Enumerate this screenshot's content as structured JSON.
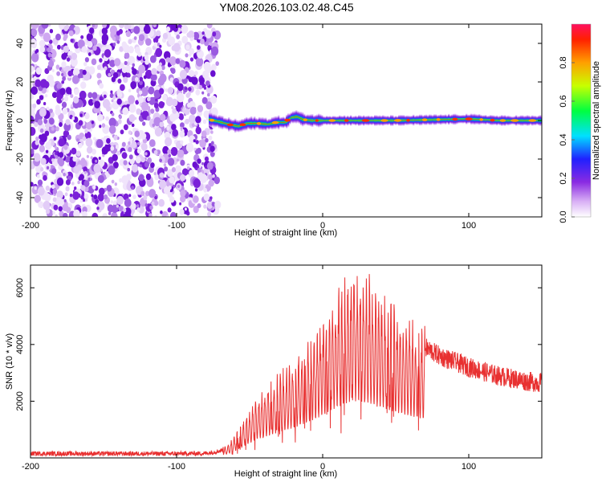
{
  "title": "YM08.2026.103.02.48.C45",
  "colors": {
    "trace": "#e83030",
    "noise_dot": "#8a3bd6",
    "axis": "#000000",
    "background": "#ffffff"
  },
  "chart_data": [
    {
      "type": "heatmap",
      "title": "YM08.2026.103.02.48.C45",
      "xlabel": "Height of straight line (km)",
      "ylabel": "Frequency (Hz)",
      "xlim": [
        -200,
        150
      ],
      "ylim": [
        -50,
        50
      ],
      "xticks": [
        -200,
        -100,
        0,
        100
      ],
      "yticks": [
        -40,
        -20,
        0,
        20,
        40
      ],
      "noise_region": {
        "x": [
          -200,
          -75
        ],
        "y": [
          -50,
          50
        ]
      },
      "signal_band": {
        "x": [
          -78,
          150
        ],
        "center_hz": [
          [
            -78,
            0.5
          ],
          [
            -72,
            -0.5
          ],
          [
            -65,
            -2
          ],
          [
            -58,
            -3
          ],
          [
            -52,
            -1.5
          ],
          [
            -45,
            -1.5
          ],
          [
            -38,
            -2
          ],
          [
            -32,
            -1
          ],
          [
            -26,
            -1
          ],
          [
            -22,
            1.5
          ],
          [
            -18,
            2
          ],
          [
            -14,
            0.5
          ],
          [
            -8,
            0
          ],
          [
            0,
            0
          ],
          [
            20,
            0
          ],
          [
            50,
            0
          ],
          [
            80,
            0.5
          ],
          [
            100,
            0.8
          ],
          [
            120,
            0
          ],
          [
            150,
            0
          ]
        ]
      },
      "colorbar": {
        "label": "Normalized spectral amplitude",
        "range": [
          0.0,
          1.0
        ],
        "ticks": [
          0.0,
          0.2,
          0.4,
          0.6,
          0.8
        ],
        "tick_labels": [
          "0.0",
          "0.2",
          "0.4",
          "0.6",
          "0.8"
        ]
      }
    },
    {
      "type": "line",
      "xlabel": "Height of straight line (km)",
      "ylabel": "SNR (10 * v/v)",
      "xlim": [
        -200,
        150
      ],
      "ylim": [
        0,
        6800
      ],
      "xticks": [
        -200,
        -100,
        0,
        100
      ],
      "yticks": [
        2000,
        4000,
        6000
      ],
      "series": [
        {
          "name": "SNR",
          "envelope": [
            [
              -200,
              150
            ],
            [
              -100,
              150
            ],
            [
              -80,
              160
            ],
            [
              -70,
              250
            ],
            [
              -65,
              400
            ],
            [
              -60,
              700
            ],
            [
              -55,
              1100
            ],
            [
              -50,
              1500
            ],
            [
              -45,
              1900
            ],
            [
              -40,
              2100
            ],
            [
              -35,
              2300
            ],
            [
              -30,
              2600
            ],
            [
              -25,
              2800
            ],
            [
              -20,
              3000
            ],
            [
              -15,
              3300
            ],
            [
              -10,
              3600
            ],
            [
              -5,
              3900
            ],
            [
              0,
              4300
            ],
            [
              5,
              4700
            ],
            [
              10,
              5100
            ],
            [
              15,
              5400
            ],
            [
              20,
              5700
            ],
            [
              25,
              5700
            ],
            [
              30,
              5600
            ],
            [
              35,
              5300
            ],
            [
              40,
              5000
            ],
            [
              45,
              4800
            ],
            [
              50,
              4600
            ],
            [
              55,
              4400
            ],
            [
              60,
              4200
            ],
            [
              65,
              4050
            ],
            [
              70,
              3900
            ],
            [
              75,
              3750
            ],
            [
              80,
              3600
            ],
            [
              90,
              3400
            ],
            [
              100,
              3200
            ],
            [
              110,
              3050
            ],
            [
              120,
              2900
            ],
            [
              130,
              2800
            ],
            [
              140,
              2700
            ],
            [
              150,
              2650
            ]
          ]
        }
      ]
    }
  ]
}
